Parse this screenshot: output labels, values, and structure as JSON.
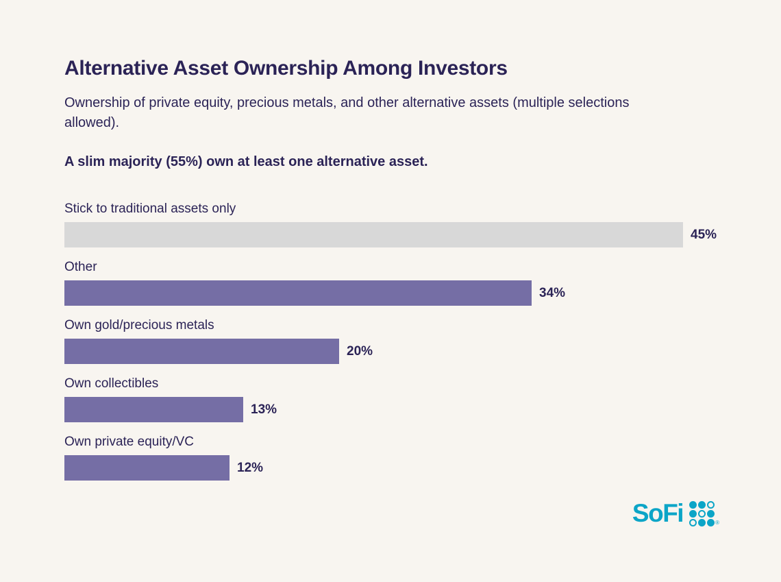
{
  "page": {
    "background": "#f8f5f0",
    "text_color": "#2b2356"
  },
  "chart_data": {
    "type": "bar",
    "orientation": "horizontal",
    "title": "Alternative Asset Ownership Among Investors",
    "subtitle": "Ownership of private equity, precious metals, and other alternative assets (multiple selections allowed).",
    "callout": "A slim majority (55%) own at least one alternative asset.",
    "categories": [
      "Stick to traditional assets only",
      "Other",
      "Own gold/precious metals",
      "Own collectibles",
      "Own private equity/VC"
    ],
    "values": [
      45,
      34,
      20,
      13,
      12
    ],
    "value_labels": [
      "45%",
      "34%",
      "20%",
      "13%",
      "12%"
    ],
    "xlim": [
      0,
      45
    ],
    "grid": false,
    "legend": false,
    "value_label_position": "right-of-bar",
    "bar_colors": [
      "#d8d8d8",
      "#756ea5",
      "#756ea5",
      "#756ea5",
      "#756ea5"
    ],
    "label_color": "#2b2356"
  },
  "logo": {
    "text": "SoFi",
    "registered": "®",
    "color": "#0ca5c7",
    "dot_grid": [
      [
        1,
        1,
        0
      ],
      [
        1,
        0,
        1
      ],
      [
        0,
        1,
        1
      ]
    ]
  }
}
